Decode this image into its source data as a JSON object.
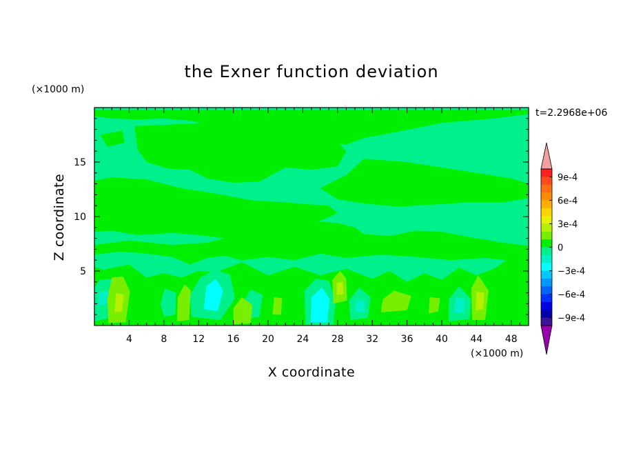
{
  "chart_data": {
    "type": "heatmap",
    "title": "the Exner function deviation",
    "xlabel": "X coordinate",
    "ylabel": "Z coordinate",
    "x_unit": "(×1000 m)",
    "y_unit": "(×1000 m)",
    "time_label": "t=2.2968e+06",
    "xlim": [
      0,
      50
    ],
    "ylim": [
      0,
      20
    ],
    "x_ticks": [
      "4",
      "8",
      "12",
      "16",
      "20",
      "24",
      "28",
      "32",
      "36",
      "40",
      "44",
      "48"
    ],
    "y_ticks": [
      "5",
      "10",
      "15"
    ],
    "colorbar": {
      "ticks": [
        "9e-4",
        "6e-4",
        "3e-4",
        "0",
        "−3e-4",
        "−6e-4",
        "−9e-4"
      ],
      "levels": [
        {
          "min": 0.0009,
          "max": 0.001,
          "color": "#ff2020"
        },
        {
          "min": 0.0008,
          "max": 0.0009,
          "color": "#ff4a1e"
        },
        {
          "min": 0.0007,
          "max": 0.0008,
          "color": "#ff6f14"
        },
        {
          "min": 0.0006,
          "max": 0.0007,
          "color": "#ff8c00"
        },
        {
          "min": 0.0005,
          "max": 0.0006,
          "color": "#ffad00"
        },
        {
          "min": 0.0004,
          "max": 0.0005,
          "color": "#ffd200"
        },
        {
          "min": 0.0003,
          "max": 0.0004,
          "color": "#e6f000"
        },
        {
          "min": 0.0002,
          "max": 0.0003,
          "color": "#b4f000"
        },
        {
          "min": 0.0001,
          "max": 0.0002,
          "color": "#78ee00"
        },
        {
          "min": 0.0,
          "max": 0.0001,
          "color": "#00ee00"
        },
        {
          "min": -0.0001,
          "max": 0.0,
          "color": "#00f08c"
        },
        {
          "min": -0.0002,
          "max": -0.0001,
          "color": "#00f0c8"
        },
        {
          "min": -0.0003,
          "max": -0.0002,
          "color": "#00ffff"
        },
        {
          "min": -0.0004,
          "max": -0.0003,
          "color": "#00c8ff"
        },
        {
          "min": -0.0005,
          "max": -0.0004,
          "color": "#0096ff"
        },
        {
          "min": -0.0006,
          "max": -0.0005,
          "color": "#0064ff"
        },
        {
          "min": -0.0007,
          "max": -0.0006,
          "color": "#0032ff"
        },
        {
          "min": -0.0008,
          "max": -0.0007,
          "color": "#0000e6"
        },
        {
          "min": -0.0009,
          "max": -0.0008,
          "color": "#0000aa"
        },
        {
          "min": -0.001,
          "max": -0.0009,
          "color": "#3c1496"
        }
      ],
      "over_color": "#f0a0a0",
      "under_color": "#9600aa"
    },
    "field_description_levels": {
      "background": "#00f08c",
      "positive_band": "#00ee00",
      "small_positive": "#78ee00",
      "moderate_positive": "#b4f000",
      "small_negative": "#00f0c8",
      "moderate_negative": "#00ffff"
    },
    "regions": [
      {
        "level": 5e-05,
        "pts": [
          [
            0,
            19.8
          ],
          [
            50,
            19.8
          ],
          [
            50,
            19.4
          ],
          [
            46,
            19.0
          ],
          [
            40,
            18.6
          ],
          [
            35,
            17.8
          ],
          [
            31,
            17.2
          ],
          [
            29,
            16.6
          ],
          [
            27,
            16.8
          ],
          [
            25,
            17.4
          ],
          [
            22,
            17.6
          ],
          [
            19,
            17.9
          ],
          [
            17,
            18.4
          ],
          [
            14,
            18.3
          ],
          [
            11,
            18.8
          ],
          [
            8,
            19.0
          ],
          [
            5,
            18.9
          ],
          [
            2,
            19.0
          ],
          [
            0,
            19.2
          ]
        ]
      },
      {
        "level": 5e-05,
        "pts": [
          [
            4.6,
            18.3
          ],
          [
            16,
            18.7
          ],
          [
            27,
            17.8
          ],
          [
            29,
            16.0
          ],
          [
            28,
            14.6
          ],
          [
            25,
            14.3
          ],
          [
            22,
            14.5
          ],
          [
            19,
            13.2
          ],
          [
            16,
            13.1
          ],
          [
            13,
            13.5
          ],
          [
            11,
            14.3
          ],
          [
            8.5,
            14.4
          ],
          [
            6,
            15.0
          ],
          [
            5,
            16.1
          ]
        ]
      },
      {
        "level": 5e-05,
        "pts": [
          [
            0.7,
            17.5
          ],
          [
            3.2,
            17.9
          ],
          [
            3.5,
            16.8
          ],
          [
            1.5,
            16.4
          ]
        ]
      },
      {
        "level": 5e-05,
        "pts": [
          [
            31,
            15.3
          ],
          [
            36,
            15.0
          ],
          [
            40,
            14.5
          ],
          [
            44,
            14.0
          ],
          [
            48,
            13.5
          ],
          [
            50,
            13.0
          ],
          [
            50,
            11.7
          ],
          [
            47,
            11.3
          ],
          [
            43,
            11.3
          ],
          [
            39,
            11.1
          ],
          [
            35,
            10.9
          ],
          [
            31,
            11.2
          ],
          [
            28,
            11.6
          ],
          [
            26,
            12.6
          ],
          [
            29,
            13.8
          ]
        ]
      },
      {
        "level": 5e-05,
        "pts": [
          [
            0,
            13.3
          ],
          [
            2,
            13.6
          ],
          [
            6,
            13.4
          ],
          [
            10,
            12.6
          ],
          [
            14,
            12.1
          ],
          [
            18,
            11.5
          ],
          [
            22,
            11.3
          ],
          [
            25,
            11.1
          ],
          [
            27,
            11.0
          ],
          [
            28,
            10.3
          ],
          [
            26,
            9.6
          ],
          [
            23,
            9.2
          ],
          [
            20,
            9.0
          ],
          [
            18,
            8.2
          ],
          [
            15,
            8.0
          ],
          [
            12,
            8.3
          ],
          [
            9,
            8.5
          ],
          [
            5,
            8.3
          ],
          [
            2,
            8.7
          ],
          [
            0,
            8.6
          ]
        ]
      },
      {
        "level": 5e-05,
        "pts": [
          [
            18,
            9.0
          ],
          [
            21,
            9.7
          ],
          [
            25,
            9.6
          ],
          [
            28,
            9.4
          ],
          [
            30,
            9.0
          ],
          [
            31,
            8.4
          ],
          [
            34,
            8.2
          ],
          [
            37,
            8.7
          ],
          [
            40,
            8.6
          ],
          [
            44,
            8.0
          ],
          [
            47,
            7.6
          ],
          [
            50,
            7.3
          ],
          [
            50,
            5.8
          ],
          [
            45,
            6.2
          ],
          [
            41,
            6.0
          ],
          [
            37,
            6.3
          ],
          [
            33,
            6.5
          ],
          [
            29,
            6.2
          ],
          [
            26,
            6.6
          ],
          [
            23,
            6.0
          ],
          [
            20,
            6.3
          ],
          [
            17,
            6.0
          ],
          [
            15,
            6.4
          ],
          [
            13,
            6.2
          ],
          [
            11,
            5.6
          ],
          [
            9,
            6.3
          ],
          [
            6,
            6.6
          ],
          [
            3,
            6.8
          ],
          [
            0,
            6.5
          ],
          [
            0,
            7.4
          ],
          [
            4,
            7.8
          ],
          [
            9,
            7.4
          ],
          [
            13,
            7.6
          ],
          [
            16,
            8.2
          ]
        ]
      },
      {
        "level": 5e-05,
        "pts": [
          [
            0,
            0
          ],
          [
            50,
            0
          ],
          [
            50,
            6.5
          ],
          [
            48,
            6.3
          ],
          [
            46,
            5.2
          ],
          [
            44,
            4.6
          ],
          [
            42,
            5.3
          ],
          [
            40,
            4.2
          ],
          [
            38,
            4.8
          ],
          [
            36,
            4.0
          ],
          [
            34,
            5.0
          ],
          [
            32,
            4.3
          ],
          [
            29,
            5.2
          ],
          [
            26,
            4.6
          ],
          [
            23,
            5.4
          ],
          [
            20,
            4.6
          ],
          [
            17,
            5.8
          ],
          [
            14,
            4.9
          ],
          [
            12,
            5.0
          ],
          [
            10,
            4.4
          ],
          [
            8,
            4.8
          ],
          [
            6,
            4.4
          ],
          [
            4,
            5.6
          ],
          [
            1,
            5.1
          ],
          [
            0,
            5.4
          ]
        ]
      },
      {
        "level": -5e-05,
        "pts": [
          [
            0,
            0.4
          ],
          [
            2.5,
            0.8
          ],
          [
            3.2,
            3.5
          ],
          [
            2.0,
            4.3
          ],
          [
            0.6,
            4.2
          ],
          [
            0,
            3.5
          ]
        ]
      },
      {
        "level": -5e-05,
        "pts": [
          [
            11.2,
            0.8
          ],
          [
            14.5,
            0.5
          ],
          [
            16.2,
            2.5
          ],
          [
            15.6,
            4.7
          ],
          [
            13.8,
            5.1
          ],
          [
            12.2,
            4.4
          ],
          [
            11.0,
            2.8
          ]
        ]
      },
      {
        "level": -5e-05,
        "pts": [
          [
            24.3,
            0
          ],
          [
            27.5,
            0
          ],
          [
            27.8,
            2.2
          ],
          [
            27.0,
            4.1
          ],
          [
            25.5,
            4.3
          ],
          [
            24.2,
            3.2
          ]
        ]
      },
      {
        "level": -5e-05,
        "pts": [
          [
            29.5,
            0.5
          ],
          [
            31.5,
            0.7
          ],
          [
            31.8,
            2.6
          ],
          [
            30.5,
            3.5
          ],
          [
            29.3,
            2.3
          ]
        ]
      },
      {
        "level": -5e-05,
        "pts": [
          [
            40.8,
            0.4
          ],
          [
            43.2,
            0.6
          ],
          [
            43.4,
            2.4
          ],
          [
            42.0,
            3.6
          ],
          [
            40.8,
            2.4
          ]
        ]
      },
      {
        "level": -5e-05,
        "pts": [
          [
            17.5,
            0.6
          ],
          [
            19.0,
            0.8
          ],
          [
            19.4,
            2.8
          ],
          [
            18.0,
            3.3
          ],
          [
            17.2,
            2.2
          ]
        ]
      },
      {
        "level": -5e-05,
        "pts": [
          [
            8.0,
            0.8
          ],
          [
            9.3,
            1.0
          ],
          [
            9.4,
            3.0
          ],
          [
            8.1,
            3.4
          ],
          [
            7.6,
            2.0
          ]
        ]
      },
      {
        "level": -0.00015,
        "pts": [
          [
            0.4,
            1.8
          ],
          [
            1.6,
            2.0
          ],
          [
            1.7,
            3.2
          ],
          [
            0.5,
            3.0
          ]
        ]
      },
      {
        "level": -0.00025,
        "pts": [
          [
            12.6,
            1.5
          ],
          [
            14.2,
            1.3
          ],
          [
            14.8,
            3.2
          ],
          [
            14.0,
            4.3
          ],
          [
            12.9,
            3.6
          ]
        ]
      },
      {
        "level": -0.00025,
        "pts": [
          [
            24.9,
            0.3
          ],
          [
            26.8,
            0.3
          ],
          [
            27.1,
            2.4
          ],
          [
            26.2,
            3.5
          ],
          [
            25.0,
            2.6
          ]
        ]
      },
      {
        "level": -0.00015,
        "pts": [
          [
            41.4,
            1.2
          ],
          [
            42.6,
            1.2
          ],
          [
            42.7,
            2.4
          ],
          [
            41.6,
            2.6
          ]
        ]
      },
      {
        "level": -0.00015,
        "pts": [
          [
            30.0,
            1.2
          ],
          [
            31.1,
            1.3
          ],
          [
            31.2,
            2.3
          ],
          [
            30.2,
            2.4
          ]
        ]
      },
      {
        "level": 0.00015,
        "pts": [
          [
            1.6,
            0.2
          ],
          [
            3.6,
            0.3
          ],
          [
            4.1,
            3.1
          ],
          [
            3.3,
            4.5
          ],
          [
            2.0,
            4.4
          ],
          [
            1.5,
            2.5
          ]
        ]
      },
      {
        "level": 0.00015,
        "pts": [
          [
            9.5,
            0.4
          ],
          [
            10.9,
            0.5
          ],
          [
            11.1,
            3.2
          ],
          [
            10.4,
            3.8
          ],
          [
            9.6,
            2.6
          ]
        ]
      },
      {
        "level": 0.00015,
        "pts": [
          [
            16.0,
            0.1
          ],
          [
            18.0,
            0.2
          ],
          [
            18.2,
            1.9
          ],
          [
            17.0,
            2.6
          ],
          [
            16.0,
            1.6
          ]
        ]
      },
      {
        "level": 0.00015,
        "pts": [
          [
            27.5,
            2.0
          ],
          [
            29.1,
            2.3
          ],
          [
            29.0,
            4.3
          ],
          [
            28.3,
            5.0
          ],
          [
            27.4,
            4.2
          ]
        ]
      },
      {
        "level": 0.00015,
        "pts": [
          [
            20.5,
            1.0
          ],
          [
            21.5,
            1.0
          ],
          [
            21.6,
            2.5
          ],
          [
            20.7,
            2.6
          ]
        ]
      },
      {
        "level": 0.00015,
        "pts": [
          [
            33.0,
            1.2
          ],
          [
            36.0,
            1.4
          ],
          [
            36.5,
            2.7
          ],
          [
            34.5,
            3.2
          ],
          [
            33.2,
            2.4
          ]
        ]
      },
      {
        "level": 0.00015,
        "pts": [
          [
            38.5,
            1.1
          ],
          [
            39.6,
            1.3
          ],
          [
            39.8,
            2.5
          ],
          [
            38.6,
            2.6
          ]
        ]
      },
      {
        "level": 0.00015,
        "pts": [
          [
            43.5,
            0.5
          ],
          [
            45.0,
            0.5
          ],
          [
            45.4,
            3.2
          ],
          [
            44.2,
            4.6
          ],
          [
            43.4,
            3.4
          ]
        ]
      },
      {
        "level": 0.00025,
        "pts": [
          [
            2.3,
            1.2
          ],
          [
            3.2,
            1.3
          ],
          [
            3.4,
            2.8
          ],
          [
            2.5,
            3.0
          ]
        ]
      },
      {
        "level": 0.00025,
        "pts": [
          [
            27.9,
            2.8
          ],
          [
            28.7,
            2.9
          ],
          [
            28.6,
            4.0
          ],
          [
            27.9,
            3.9
          ]
        ]
      },
      {
        "level": 0.00025,
        "pts": [
          [
            43.9,
            1.4
          ],
          [
            44.8,
            1.5
          ],
          [
            44.9,
            3.0
          ],
          [
            44.0,
            3.1
          ]
        ]
      }
    ]
  }
}
